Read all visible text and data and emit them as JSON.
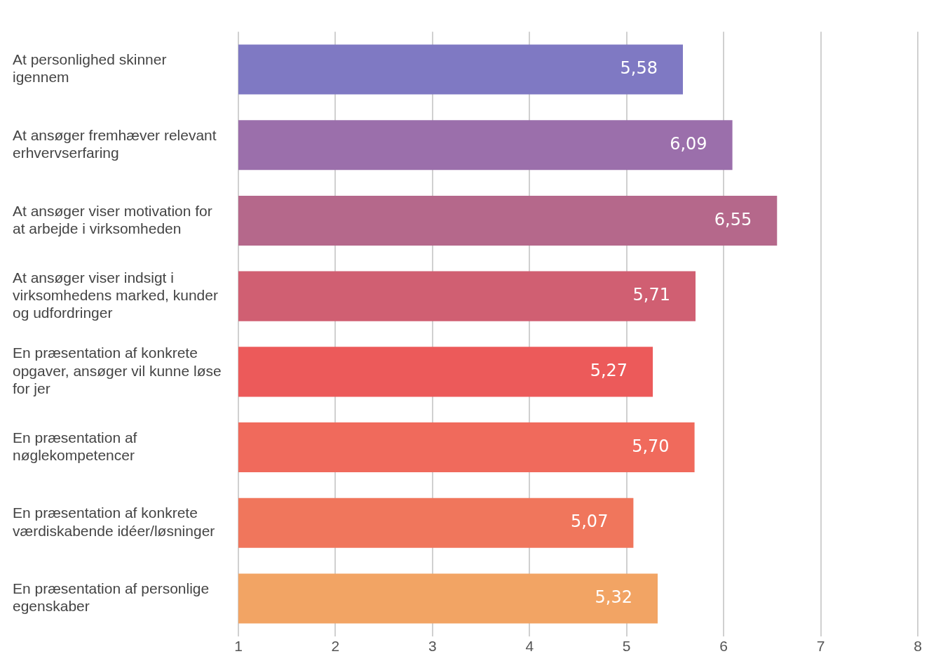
{
  "chart_data": {
    "type": "bar",
    "orientation": "horizontal",
    "categories": [
      "At personlighed skinner igennem",
      "At ansøger fremhæver relevant erhvervserfaring",
      "At ansøger viser motivation for at arbejde i virksomheden",
      "At ansøger viser indsigt i virksomhedens marked, kunder og udfordringer",
      "En præsentation af konkrete opgaver, ansøger vil kunne løse for jer",
      "En præsentation af nøglekompetencer",
      "En præsentation af konkrete værdiskabende idéer/løsninger",
      "En præsentation af personlige egenskaber"
    ],
    "values": [
      5.58,
      6.09,
      6.55,
      5.71,
      5.27,
      5.7,
      5.07,
      5.32
    ],
    "value_labels": [
      "5,58",
      "6,09",
      "6,55",
      "5,71",
      "5,27",
      "5,70",
      "5,07",
      "5,32"
    ],
    "colors": [
      "#7f79c3",
      "#9b6fab",
      "#b5688b",
      "#d05f72",
      "#ec5a5a",
      "#f06a5c",
      "#f0765c",
      "#f2a464"
    ],
    "xlim": [
      1,
      8
    ],
    "xticks": [
      1,
      2,
      3,
      4,
      5,
      6,
      7,
      8
    ],
    "grid": "x",
    "legend": false
  }
}
